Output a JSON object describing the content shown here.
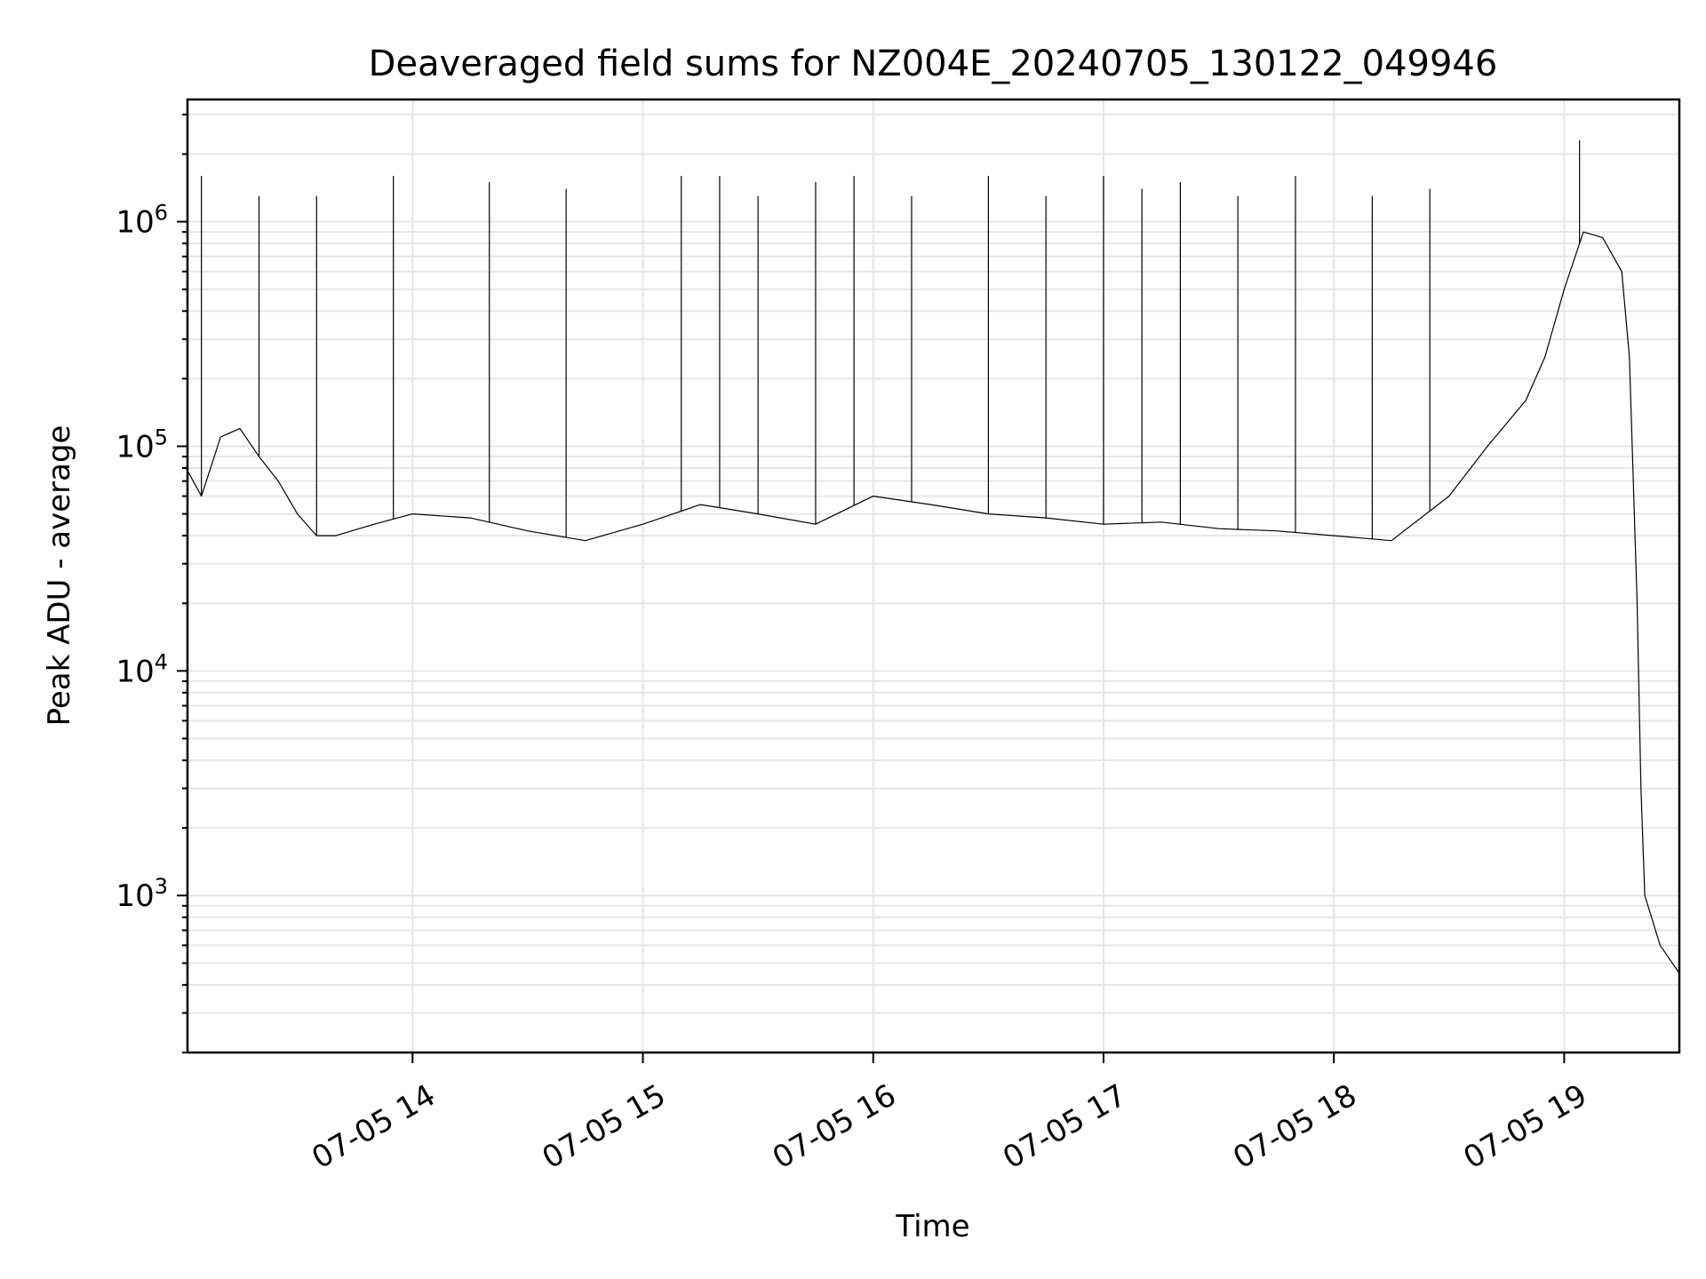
{
  "chart_data": {
    "type": "line",
    "title": "Deaveraged field sums for NZ004E_20240705_130122_049946",
    "xlabel": "Time",
    "ylabel": "Peak ADU - average",
    "yscale": "log",
    "ylim": [
      200,
      3500000
    ],
    "xlim": [
      "2024-07-05 13:01:22",
      "2024-07-05 19:30:00"
    ],
    "grid": true,
    "grid_which": "both",
    "x_tick_labels": [
      "07-05 14",
      "07-05 15",
      "07-05 16",
      "07-05 17",
      "07-05 18",
      "07-05 19"
    ],
    "x_tick_values": [
      "2024-07-05 14:00",
      "2024-07-05 15:00",
      "2024-07-05 16:00",
      "2024-07-05 17:00",
      "2024-07-05 18:00",
      "2024-07-05 19:00"
    ],
    "y_tick_labels": [
      {
        "base": "10",
        "exp": "3"
      },
      {
        "base": "10",
        "exp": "4"
      },
      {
        "base": "10",
        "exp": "5"
      },
      {
        "base": "10",
        "exp": "6"
      }
    ],
    "y_tick_values": [
      1000,
      10000,
      100000,
      1000000
    ],
    "series": [
      {
        "color": "#000000",
        "x": [
          "2024-07-05 13:01",
          "2024-07-05 13:05",
          "2024-07-05 13:10",
          "2024-07-05 13:15",
          "2024-07-05 13:20",
          "2024-07-05 13:25",
          "2024-07-05 13:30",
          "2024-07-05 13:35",
          "2024-07-05 13:40",
          "2024-07-05 13:50",
          "2024-07-05 14:00",
          "2024-07-05 14:15",
          "2024-07-05 14:30",
          "2024-07-05 14:45",
          "2024-07-05 15:00",
          "2024-07-05 15:15",
          "2024-07-05 15:30",
          "2024-07-05 15:45",
          "2024-07-05 16:00",
          "2024-07-05 16:15",
          "2024-07-05 16:30",
          "2024-07-05 16:45",
          "2024-07-05 17:00",
          "2024-07-05 17:15",
          "2024-07-05 17:30",
          "2024-07-05 17:45",
          "2024-07-05 18:00",
          "2024-07-05 18:15",
          "2024-07-05 18:30",
          "2024-07-05 18:40",
          "2024-07-05 18:50",
          "2024-07-05 18:55",
          "2024-07-05 19:00",
          "2024-07-05 19:05",
          "2024-07-05 19:10",
          "2024-07-05 19:15",
          "2024-07-05 19:17",
          "2024-07-05 19:19",
          "2024-07-05 19:20",
          "2024-07-05 19:21",
          "2024-07-05 19:25",
          "2024-07-05 19:30"
        ],
        "y": [
          80000,
          60000,
          110000,
          120000,
          90000,
          70000,
          50000,
          40000,
          40000,
          45000,
          50000,
          48000,
          42000,
          38000,
          45000,
          55000,
          50000,
          45000,
          60000,
          55000,
          50000,
          48000,
          45000,
          46000,
          43000,
          42000,
          40000,
          38000,
          60000,
          100000,
          160000,
          250000,
          500000,
          900000,
          850000,
          600000,
          250000,
          20000,
          3000,
          1000,
          600,
          450
        ],
        "spike_peaks": [
          1600000,
          1300000,
          1300000,
          1600000,
          1500000,
          1400000,
          1600000,
          1600000,
          1300000,
          1500000,
          1600000,
          1300000,
          1600000,
          1300000,
          1600000,
          1400000,
          1500000,
          1300000,
          1600000,
          1300000,
          1400000,
          2300000
        ],
        "spike_times": [
          "2024-07-05 13:05",
          "2024-07-05 13:20",
          "2024-07-05 13:35",
          "2024-07-05 13:55",
          "2024-07-05 14:20",
          "2024-07-05 14:40",
          "2024-07-05 15:10",
          "2024-07-05 15:20",
          "2024-07-05 15:30",
          "2024-07-05 15:45",
          "2024-07-05 15:55",
          "2024-07-05 16:10",
          "2024-07-05 16:30",
          "2024-07-05 16:45",
          "2024-07-05 17:00",
          "2024-07-05 17:10",
          "2024-07-05 17:20",
          "2024-07-05 17:35",
          "2024-07-05 17:50",
          "2024-07-05 18:10",
          "2024-07-05 18:25",
          "2024-07-05 19:04"
        ]
      }
    ]
  }
}
